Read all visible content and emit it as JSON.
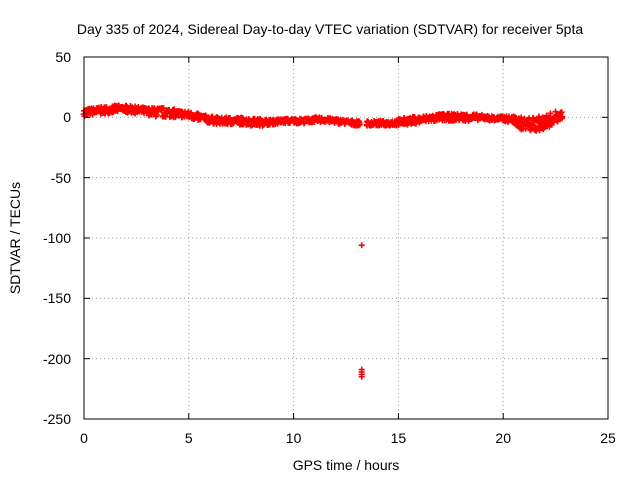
{
  "chart_data": {
    "type": "scatter",
    "title": "Day 335 of 2024, Sidereal Day-to-day VTEC variation (SDTVAR) for receiver 5pta",
    "xlabel": "GPS time / hours",
    "ylabel": "SDTVAR / TECUs",
    "xlim": [
      0,
      25
    ],
    "ylim": [
      -250,
      50
    ],
    "xticks": [
      "0",
      "5",
      "10",
      "15",
      "20",
      "25"
    ],
    "yticks": [
      "50",
      "0",
      "-50",
      "-100",
      "-150",
      "-200",
      "-250"
    ],
    "grid": true,
    "legend": "none",
    "series": [
      {
        "name": "SDTVAR",
        "color": "#ff0000",
        "marker": "plus",
        "trend": {
          "x": [
            0,
            0.5,
            1.0,
            1.5,
            2.0,
            2.5,
            3.0,
            3.5,
            4.0,
            4.5,
            5.0,
            5.5,
            6.0,
            6.5,
            7.0,
            7.5,
            8.0,
            8.5,
            9.0,
            9.5,
            10.0,
            10.5,
            11.0,
            11.5,
            12.0,
            12.5,
            13.0,
            13.5,
            14.0,
            14.5,
            15.0,
            15.5,
            16.0,
            16.5,
            17.0,
            17.5,
            18.0,
            18.5,
            19.0,
            19.5,
            20.0,
            20.5,
            21.0,
            21.5,
            22.0,
            22.5,
            22.8
          ],
          "y": [
            4,
            5,
            6,
            7,
            7,
            6,
            5,
            4,
            4,
            3,
            2,
            0,
            -2,
            -3,
            -3,
            -3,
            -4,
            -4,
            -4,
            -3,
            -3,
            -3,
            -2,
            -2,
            -3,
            -4,
            -5,
            -5,
            -5,
            -5,
            -4,
            -3,
            -2,
            -1,
            0,
            0,
            0,
            0,
            0,
            -1,
            -1,
            -2,
            -6,
            -6,
            -4,
            0,
            2
          ],
          "spread": [
            3,
            3,
            3,
            3,
            3,
            3,
            3,
            4,
            4,
            3,
            3,
            3,
            3,
            3,
            3,
            3,
            3,
            3,
            2,
            2,
            2,
            2,
            2,
            2,
            2,
            2,
            2,
            2,
            2,
            2,
            3,
            3,
            3,
            3,
            3,
            3,
            3,
            3,
            2,
            2,
            2,
            3,
            6,
            6,
            6,
            5,
            3
          ]
        },
        "outliers": {
          "x": [
            13.25,
            13.25,
            13.25,
            13.25,
            13.25
          ],
          "y": [
            -106,
            -209,
            -211,
            -213,
            -215
          ]
        }
      }
    ]
  }
}
